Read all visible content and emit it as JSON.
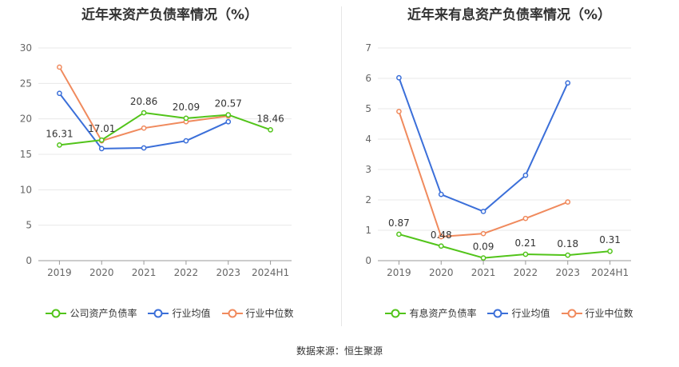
{
  "source": "数据来源：恒生聚源",
  "chart_data": [
    {
      "type": "line",
      "title": "近年来资产负债率情况（%）",
      "categories": [
        "2019",
        "2020",
        "2021",
        "2022",
        "2023",
        "2024H1"
      ],
      "ylim": [
        0,
        30
      ],
      "yticks": [
        0,
        5,
        10,
        15,
        20,
        25,
        30
      ],
      "grid": true,
      "legend_position": "bottom",
      "series": [
        {
          "name": "公司资产负债率",
          "color": "#52c41a",
          "values": [
            16.31,
            17.01,
            20.86,
            20.09,
            20.57,
            18.46
          ],
          "labels": true
        },
        {
          "name": "行业均值",
          "color": "#3b6fd9",
          "values": [
            23.6,
            15.8,
            15.9,
            16.9,
            19.6,
            null
          ],
          "labels": false
        },
        {
          "name": "行业中位数",
          "color": "#f08a5d",
          "values": [
            27.3,
            16.9,
            18.7,
            19.6,
            20.4,
            null
          ],
          "labels": false
        }
      ]
    },
    {
      "type": "line",
      "title": "近年来有息资产负债率情况（%）",
      "categories": [
        "2019",
        "2020",
        "2021",
        "2022",
        "2023",
        "2024H1"
      ],
      "ylim": [
        0,
        7
      ],
      "yticks": [
        0,
        1,
        2,
        3,
        4,
        5,
        6,
        7
      ],
      "grid": true,
      "legend_position": "bottom",
      "series": [
        {
          "name": "有息资产负债率",
          "color": "#52c41a",
          "values": [
            0.87,
            0.48,
            0.09,
            0.21,
            0.18,
            0.31
          ],
          "labels": true
        },
        {
          "name": "行业均值",
          "color": "#3b6fd9",
          "values": [
            6.02,
            2.18,
            1.62,
            2.81,
            5.85,
            null
          ],
          "labels": false
        },
        {
          "name": "行业中位数",
          "color": "#f08a5d",
          "values": [
            4.91,
            0.79,
            0.89,
            1.39,
            1.93,
            null
          ],
          "labels": false
        }
      ]
    }
  ]
}
